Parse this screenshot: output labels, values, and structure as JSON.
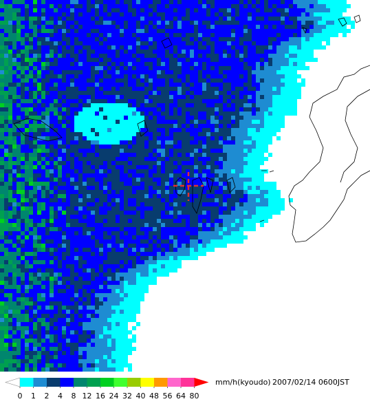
{
  "legend": {
    "colors": [
      "#ffffff",
      "#00ffff",
      "#1e8cd2",
      "#083c6e",
      "#0000ff",
      "#00866e",
      "#00a050",
      "#00d020",
      "#40ff30",
      "#99cc00",
      "#ffff00",
      "#ff9900",
      "#ff66cc",
      "#ff3399",
      "#ff0000"
    ],
    "ticks": [
      0,
      1,
      2,
      4,
      8,
      12,
      16,
      24,
      32,
      40,
      48,
      56,
      64,
      80
    ],
    "unit": "mm/h(kyoudo)",
    "timestamp": "2007/02/14 0600JST"
  }
}
